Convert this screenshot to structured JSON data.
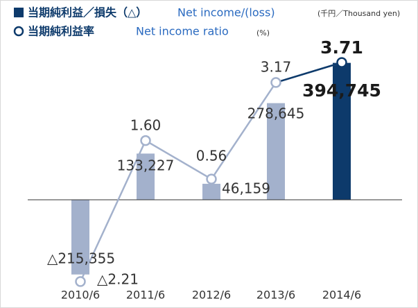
{
  "chart_data": {
    "type": "bar_line",
    "legend": {
      "bar_label_ja": "当期純利益／損失（△）",
      "bar_label_en": "Net income/(loss)",
      "bar_unit": "(千円／Thousand yen)",
      "line_label_ja": "当期純利益率",
      "line_label_en": "Net income ratio",
      "line_unit": "(%)"
    },
    "categories": [
      "2010/6",
      "2011/6",
      "2012/6",
      "2013/6",
      "2014/6"
    ],
    "series": [
      {
        "name": "Net income/(loss)",
        "type": "bar",
        "color": "#a3b1cc",
        "highlight_color": "#0d3a6b",
        "values": [
          -215355,
          133227,
          46159,
          278645,
          394745
        ],
        "value_labels": [
          "△215,355",
          "133,227",
          "46,159",
          "278,645",
          "394,745"
        ]
      },
      {
        "name": "Net income ratio",
        "type": "line",
        "axis": "y2",
        "color": "#a3b1cc",
        "highlight_color": "#0d3a6b",
        "values": [
          -2.21,
          1.6,
          0.56,
          3.17,
          3.71
        ],
        "value_labels": [
          "△2.21",
          "1.60",
          "0.56",
          "3.17",
          "3.71"
        ]
      }
    ],
    "ylim": [
      -240000,
      464000
    ],
    "y2lim": [
      -2.25,
      4.35
    ]
  }
}
